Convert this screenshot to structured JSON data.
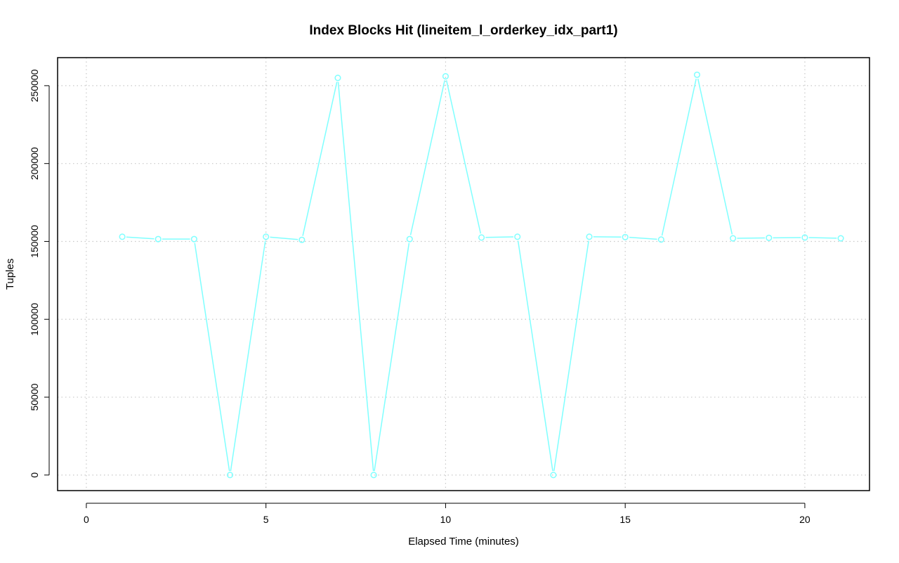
{
  "chart_data": {
    "type": "line",
    "title": "Index Blocks Hit (lineitem_l_orderkey_idx_part1)",
    "xlabel": "Elapsed Time (minutes)",
    "ylabel": "Tuples",
    "xlim": [
      -0.8,
      21.8
    ],
    "ylim": [
      -10000,
      268000
    ],
    "x_ticks": [
      0,
      5,
      10,
      15,
      20
    ],
    "y_ticks": [
      0,
      50000,
      100000,
      150000,
      200000,
      250000
    ],
    "grid": true,
    "marker": "open-circle",
    "series": [
      {
        "color": "#7fffff",
        "x": [
          1,
          2,
          3,
          4,
          5,
          6,
          7,
          8,
          9,
          10,
          11,
          12,
          13,
          14,
          15,
          16,
          17,
          18,
          19,
          20,
          21
        ],
        "y": [
          153000,
          151500,
          151500,
          0,
          153000,
          151000,
          255000,
          0,
          151500,
          256000,
          152500,
          153000,
          0,
          153000,
          152800,
          151200,
          257000,
          152000,
          152300,
          152500,
          152000
        ]
      }
    ]
  }
}
